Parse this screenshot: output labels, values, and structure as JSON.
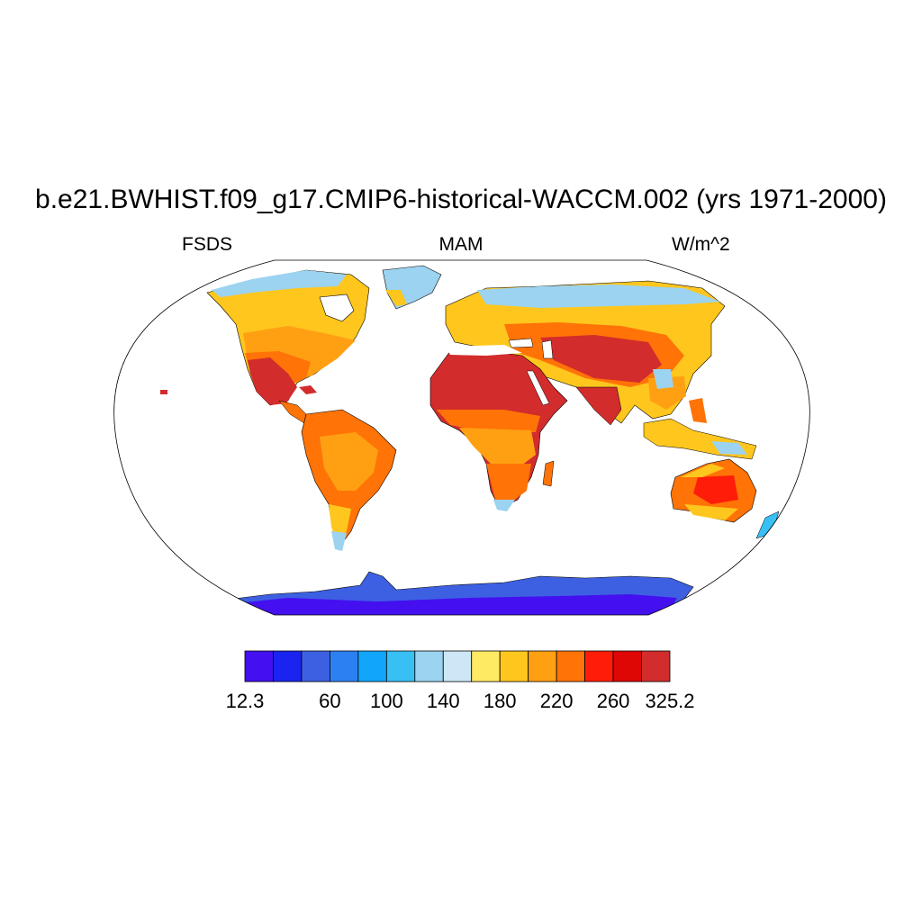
{
  "title": "b.e21.BWHIST.f09_g17.CMIP6-historical-WACCM.002 (yrs 1971-2000)",
  "subtitle": {
    "left": "FSDS",
    "center": "MAM",
    "right": "W/m^2"
  },
  "colorbar": {
    "colors": [
      "#4410f0",
      "#1a24f0",
      "#3d60e2",
      "#2d80f2",
      "#12a6fb",
      "#38c0f4",
      "#9bd3f0",
      "#cde7f6",
      "#ffea64",
      "#ffc61e",
      "#ffa013",
      "#ff7307",
      "#ff1c08",
      "#df0606",
      "#d22c2c"
    ],
    "labels": [
      "12.3",
      "",
      "60",
      "100",
      "140",
      "180",
      "220",
      "260",
      "325.2"
    ],
    "label_edges": [
      0,
      2,
      3,
      5,
      7,
      9,
      11,
      13,
      15
    ]
  }
}
